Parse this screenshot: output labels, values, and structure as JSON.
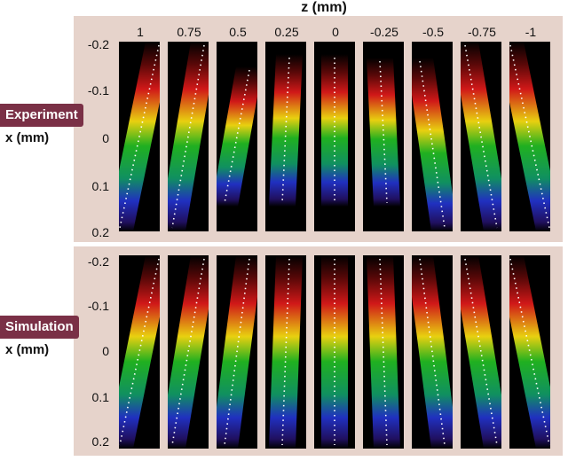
{
  "figure": {
    "z_axis_label": "z (mm)",
    "z_values": [
      "1",
      "0.75",
      "0.5",
      "0.25",
      "0",
      "-0.25",
      "-0.5",
      "-0.75",
      "-1"
    ],
    "x_ticks": [
      "-0.2",
      "-0.1",
      "0",
      "0.1",
      "0.2"
    ],
    "panels": [
      {
        "tag": "Experiment",
        "x_axis_label": "x (mm)"
      },
      {
        "tag": "Simulation",
        "x_axis_label": "x (mm)"
      }
    ],
    "colors": {
      "panel_background": "#e6d3cb",
      "tag_background": "#7a3046",
      "beam_red": "#d01818",
      "beam_yellow": "#e8d010",
      "beam_green": "#20b020",
      "beam_blue": "#2030c0",
      "dots": "#ffffff"
    }
  }
}
